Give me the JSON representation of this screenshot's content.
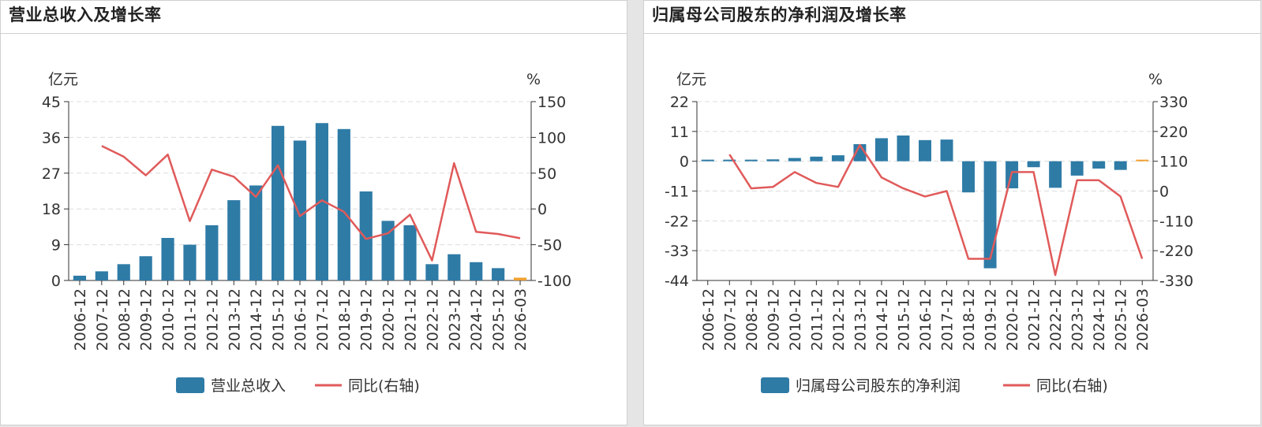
{
  "chart_data": [
    {
      "type": "bar+line",
      "title": "营业总收入及增长率",
      "ylabel_left": "亿元",
      "ylabel_right": "%",
      "ylim_left": [
        0,
        45
      ],
      "ylim_right": [
        -100,
        150
      ],
      "yticks_left": [
        "0",
        "9",
        "18",
        "27",
        "36",
        "45"
      ],
      "yticks_right": [
        "-100",
        "-50",
        "0",
        "50",
        "100",
        "150"
      ],
      "categories": [
        "2006-12",
        "2007-12",
        "2008-12",
        "2009-12",
        "2010-12",
        "2011-12",
        "2012-12",
        "2013-12",
        "2014-12",
        "2015-12",
        "2016-12",
        "2017-12",
        "2018-12",
        "2019-12",
        "2020-12",
        "2021-12",
        "2022-12",
        "2023-12",
        "2024-12",
        "2025-12",
        "2026-03"
      ],
      "series": [
        {
          "name": "营业总收入",
          "type": "bar",
          "axis": "left",
          "color": "#2e7ba6",
          "values": [
            1.2,
            2.3,
            4.1,
            6.1,
            10.7,
            9.0,
            13.9,
            20.2,
            23.9,
            38.9,
            35.2,
            39.6,
            38.1,
            22.4,
            15.0,
            13.9,
            4.1,
            6.6,
            4.6,
            3.1,
            0.7
          ]
        },
        {
          "name": "同比(右轴)",
          "type": "line",
          "axis": "right",
          "color": "#e05a5a",
          "values": [
            null,
            88,
            73,
            47,
            76,
            -17,
            55,
            45,
            17,
            61,
            -10,
            12,
            -4,
            -42,
            -34,
            -8,
            -72,
            64,
            -32,
            -35,
            -41
          ]
        }
      ],
      "highlight_color": "#f0a030",
      "grid": "dashed-horizontal",
      "legend_position": "bottom"
    },
    {
      "type": "bar+line",
      "title": "归属母公司股东的净利润及增长率",
      "ylabel_left": "亿元",
      "ylabel_right": "%",
      "ylim_left": [
        -44,
        22
      ],
      "ylim_right": [
        -330,
        330
      ],
      "yticks_left": [
        "-44",
        "-33",
        "-22",
        "-11",
        "0",
        "11",
        "22"
      ],
      "yticks_right": [
        "-330",
        "-220",
        "-110",
        "0",
        "110",
        "220",
        "330"
      ],
      "categories": [
        "2006-12",
        "2007-12",
        "2008-12",
        "2009-12",
        "2010-12",
        "2011-12",
        "2012-12",
        "2013-12",
        "2014-12",
        "2015-12",
        "2016-12",
        "2017-12",
        "2018-12",
        "2019-12",
        "2020-12",
        "2021-12",
        "2022-12",
        "2023-12",
        "2024-12",
        "2025-12",
        "2026-03"
      ],
      "series": [
        {
          "name": "归属母公司股东的净利润",
          "type": "bar",
          "axis": "left",
          "color": "#2e7ba6",
          "values": [
            0.1,
            0.2,
            0.5,
            0.7,
            1.2,
            1.7,
            2.2,
            6.3,
            8.5,
            9.5,
            7.8,
            8.0,
            -11.5,
            -39.5,
            -10.0,
            -2.2,
            -9.8,
            -5.3,
            -2.7,
            -3.2,
            0.3
          ]
        },
        {
          "name": "同比(右轴)",
          "type": "line",
          "axis": "right",
          "color": "#e05a5a",
          "values": [
            null,
            135,
            10,
            15,
            70,
            30,
            15,
            170,
            50,
            10,
            -20,
            0,
            -250,
            -250,
            70,
            70,
            -310,
            40,
            40,
            -20,
            -250
          ]
        }
      ],
      "highlight_color": "#f0a030",
      "grid": "dashed-horizontal",
      "legend_position": "bottom"
    }
  ]
}
